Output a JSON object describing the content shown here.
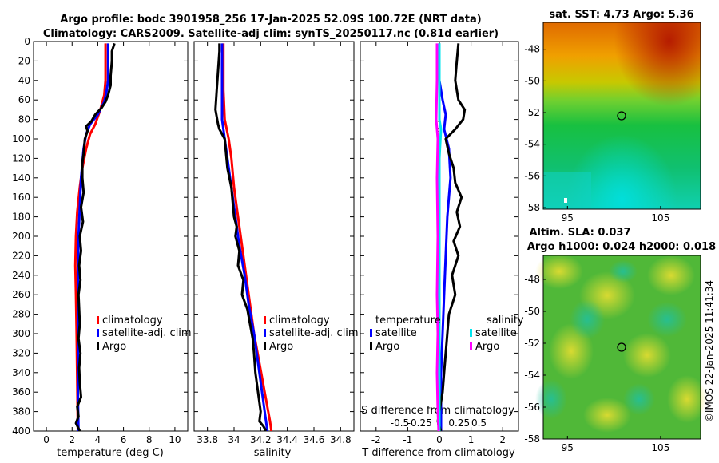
{
  "title": {
    "line1": "Argo profile: bodc 3901958_256 17-Jan-2025 52.09S 100.72E (NRT data)",
    "line2": "Climatology: CARS2009. Satellite-adj clim: synTS_20250117.nc (0.81d earlier)"
  },
  "copyright": "©IMOS 22-Jan-2025 11:41:34",
  "colors": {
    "climatology": "#ff0000",
    "satellite": "#0000ff",
    "argo": "#000000",
    "sal_sat": "#00e5ee",
    "sal_argo": "#ff00ff"
  },
  "chart_data": [
    {
      "type": "line",
      "panel": "temperature",
      "xlabel": "temperature (deg C)",
      "ylabel": "depth",
      "xlim": [
        -1,
        11
      ],
      "ylim": [
        400,
        0
      ],
      "xticks": [
        "0",
        "2",
        "4",
        "6",
        "8",
        "10"
      ],
      "yticks": [
        "0",
        "20",
        "40",
        "60",
        "80",
        "100",
        "120",
        "140",
        "160",
        "180",
        "200",
        "220",
        "240",
        "260",
        "280",
        "300",
        "320",
        "340",
        "360",
        "380",
        "400"
      ],
      "legend": [
        "climatology",
        "satellite-adj. clim",
        "Argo"
      ],
      "series": [
        {
          "name": "climatology",
          "values": [
            [
              4.6,
              2
            ],
            [
              4.6,
              20
            ],
            [
              4.6,
              40
            ],
            [
              4.5,
              55
            ],
            [
              4.2,
              70
            ],
            [
              3.8,
              85
            ],
            [
              3.4,
              95
            ],
            [
              3.1,
              110
            ],
            [
              2.8,
              130
            ],
            [
              2.6,
              150
            ],
            [
              2.4,
              175
            ],
            [
              2.3,
              200
            ],
            [
              2.25,
              230
            ],
            [
              2.3,
              260
            ],
            [
              2.35,
              300
            ],
            [
              2.4,
              350
            ],
            [
              2.45,
              400
            ]
          ]
        },
        {
          "name": "satellite-adj. clim",
          "values": [
            [
              4.8,
              2
            ],
            [
              4.8,
              20
            ],
            [
              4.8,
              40
            ],
            [
              4.7,
              50
            ],
            [
              4.5,
              62
            ],
            [
              4.0,
              75
            ],
            [
              3.4,
              85
            ],
            [
              3.1,
              95
            ],
            [
              2.9,
              110
            ],
            [
              2.7,
              140
            ],
            [
              2.6,
              170
            ],
            [
              2.5,
              200
            ],
            [
              2.45,
              240
            ],
            [
              2.45,
              280
            ],
            [
              2.45,
              320
            ],
            [
              2.45,
              360
            ],
            [
              2.5,
              400
            ]
          ]
        },
        {
          "name": "Argo",
          "values": [
            [
              5.3,
              2
            ],
            [
              5.1,
              10
            ],
            [
              5.1,
              20
            ],
            [
              5.0,
              35
            ],
            [
              5.0,
              45
            ],
            [
              4.8,
              55
            ],
            [
              4.6,
              62
            ],
            [
              4.3,
              68
            ],
            [
              3.8,
              75
            ],
            [
              3.5,
              82
            ],
            [
              3.1,
              87
            ],
            [
              3.2,
              92
            ],
            [
              3.0,
              100
            ],
            [
              2.9,
              115
            ],
            [
              2.8,
              125
            ],
            [
              2.8,
              140
            ],
            [
              2.9,
              155
            ],
            [
              2.7,
              170
            ],
            [
              2.85,
              185
            ],
            [
              2.6,
              200
            ],
            [
              2.7,
              215
            ],
            [
              2.55,
              230
            ],
            [
              2.65,
              245
            ],
            [
              2.5,
              260
            ],
            [
              2.55,
              275
            ],
            [
              2.6,
              290
            ],
            [
              2.5,
              305
            ],
            [
              2.65,
              320
            ],
            [
              2.55,
              335
            ],
            [
              2.6,
              350
            ],
            [
              2.7,
              365
            ],
            [
              2.4,
              375
            ],
            [
              2.5,
              385
            ],
            [
              2.3,
              392
            ],
            [
              2.6,
              400
            ]
          ]
        }
      ]
    },
    {
      "type": "line",
      "panel": "salinity",
      "xlabel": "salinity",
      "xlim": [
        33.7,
        34.9
      ],
      "ylim": [
        400,
        0
      ],
      "xticks": [
        "33.8",
        "34",
        "34.2",
        "34.4",
        "34.6",
        "34.8"
      ],
      "legend": [
        "climatology",
        "satellite-adj. clim",
        "Argo"
      ],
      "series": [
        {
          "name": "climatology",
          "values": [
            [
              33.92,
              2
            ],
            [
              33.92,
              20
            ],
            [
              33.92,
              50
            ],
            [
              33.93,
              80
            ],
            [
              33.96,
              100
            ],
            [
              33.98,
              120
            ],
            [
              34.0,
              150
            ],
            [
              34.03,
              180
            ],
            [
              34.06,
              210
            ],
            [
              34.09,
              240
            ],
            [
              34.12,
              270
            ],
            [
              34.15,
              300
            ],
            [
              34.19,
              330
            ],
            [
              34.23,
              360
            ],
            [
              34.27,
              390
            ],
            [
              34.28,
              400
            ]
          ]
        },
        {
          "name": "satellite-adj. clim",
          "values": [
            [
              33.91,
              2
            ],
            [
              33.91,
              20
            ],
            [
              33.91,
              50
            ],
            [
              33.91,
              80
            ],
            [
              33.93,
              100
            ],
            [
              33.95,
              120
            ],
            [
              33.98,
              150
            ],
            [
              34.01,
              180
            ],
            [
              34.04,
              210
            ],
            [
              34.08,
              240
            ],
            [
              34.11,
              270
            ],
            [
              34.15,
              300
            ],
            [
              34.18,
              330
            ],
            [
              34.21,
              360
            ],
            [
              34.24,
              390
            ],
            [
              34.25,
              400
            ]
          ]
        },
        {
          "name": "Argo",
          "values": [
            [
              33.89,
              2
            ],
            [
              33.89,
              10
            ],
            [
              33.88,
              30
            ],
            [
              33.87,
              50
            ],
            [
              33.86,
              70
            ],
            [
              33.88,
              85
            ],
            [
              33.89,
              90
            ],
            [
              33.93,
              100
            ],
            [
              33.94,
              115
            ],
            [
              33.95,
              130
            ],
            [
              33.98,
              150
            ],
            [
              33.99,
              165
            ],
            [
              34.0,
              180
            ],
            [
              34.02,
              190
            ],
            [
              34.01,
              200
            ],
            [
              34.04,
              215
            ],
            [
              34.03,
              230
            ],
            [
              34.07,
              245
            ],
            [
              34.06,
              260
            ],
            [
              34.1,
              275
            ],
            [
              34.12,
              290
            ],
            [
              34.14,
              305
            ],
            [
              34.15,
              320
            ],
            [
              34.16,
              340
            ],
            [
              34.18,
              360
            ],
            [
              34.2,
              380
            ],
            [
              34.19,
              390
            ],
            [
              34.22,
              395
            ],
            [
              34.24,
              400
            ]
          ]
        }
      ]
    },
    {
      "type": "line",
      "panel": "difference",
      "xlabel": "T difference from climatology",
      "xlabel_top": "S difference from climatology",
      "xlim": [
        -2.5,
        2.5
      ],
      "ylim": [
        400,
        0
      ],
      "xticks": [
        "-2",
        "-1",
        "0",
        "1",
        "2"
      ],
      "xticks_top": [
        "-0.5",
        "-0.25",
        "0",
        "0.25",
        "0.5"
      ],
      "legend_titles": [
        "temperature",
        "salinity"
      ],
      "legend": [
        "satellite",
        "Argo",
        "satellite",
        "Argo"
      ],
      "series": [
        {
          "name": "temperature satellite",
          "values": [
            [
              0,
              2
            ],
            [
              0,
              40
            ],
            [
              0.1,
              60
            ],
            [
              0.2,
              75
            ],
            [
              0.15,
              90
            ],
            [
              0.3,
              110
            ],
            [
              0.35,
              140
            ],
            [
              0.25,
              180
            ],
            [
              0.2,
              220
            ],
            [
              0.15,
              260
            ],
            [
              0.1,
              300
            ],
            [
              0.05,
              340
            ],
            [
              0.05,
              380
            ],
            [
              0.05,
              400
            ]
          ]
        },
        {
          "name": "temperature Argo",
          "values": [
            [
              0.6,
              2
            ],
            [
              0.55,
              20
            ],
            [
              0.5,
              40
            ],
            [
              0.6,
              60
            ],
            [
              0.8,
              70
            ],
            [
              0.75,
              80
            ],
            [
              0.5,
              90
            ],
            [
              0.2,
              100
            ],
            [
              0.3,
              115
            ],
            [
              0.45,
              130
            ],
            [
              0.5,
              145
            ],
            [
              0.7,
              160
            ],
            [
              0.55,
              175
            ],
            [
              0.65,
              190
            ],
            [
              0.45,
              205
            ],
            [
              0.6,
              220
            ],
            [
              0.4,
              240
            ],
            [
              0.5,
              260
            ],
            [
              0.3,
              280
            ],
            [
              0.25,
              300
            ],
            [
              0.2,
              320
            ],
            [
              0.15,
              340
            ],
            [
              0.1,
              360
            ],
            [
              0.0,
              380
            ],
            [
              -0.05,
              390
            ],
            [
              0.05,
              400
            ]
          ]
        },
        {
          "name": "salinity satellite",
          "values": [
            [
              0.0,
              2
            ],
            [
              0.0,
              40
            ],
            [
              0.0,
              80
            ],
            [
              0.02,
              90
            ],
            [
              0.0,
              120
            ],
            [
              0.0,
              200
            ],
            [
              0.0,
              300
            ],
            [
              0.0,
              400
            ]
          ]
        },
        {
          "name": "salinity Argo",
          "values": [
            [
              -0.03,
              2
            ],
            [
              -0.03,
              40
            ],
            [
              -0.04,
              80
            ],
            [
              -0.02,
              100
            ],
            [
              -0.03,
              140
            ],
            [
              -0.02,
              200
            ],
            [
              -0.03,
              260
            ],
            [
              -0.02,
              300
            ],
            [
              -0.03,
              340
            ],
            [
              -0.02,
              380
            ],
            [
              -0.01,
              400
            ]
          ]
        }
      ]
    },
    {
      "type": "heatmap",
      "panel": "sst_map",
      "title": "sat. SST: 4.73 Argo: 5.36",
      "xticks": [
        "95",
        "105"
      ],
      "yticks": [
        "-48",
        "-50",
        "-52",
        "-54",
        "-56",
        "-58"
      ],
      "marker": {
        "lon": 100.72,
        "lat": -52.09
      }
    },
    {
      "type": "heatmap",
      "panel": "sla_map",
      "title_line1": "Altim. SLA: 0.037",
      "title_line2": "Argo h1000: 0.024 h2000: 0.018",
      "xticks": [
        "95",
        "105"
      ],
      "yticks": [
        "-48",
        "-50",
        "-52",
        "-54",
        "-56",
        "-58"
      ],
      "marker": {
        "lon": 100.72,
        "lat": -52.09
      }
    }
  ]
}
